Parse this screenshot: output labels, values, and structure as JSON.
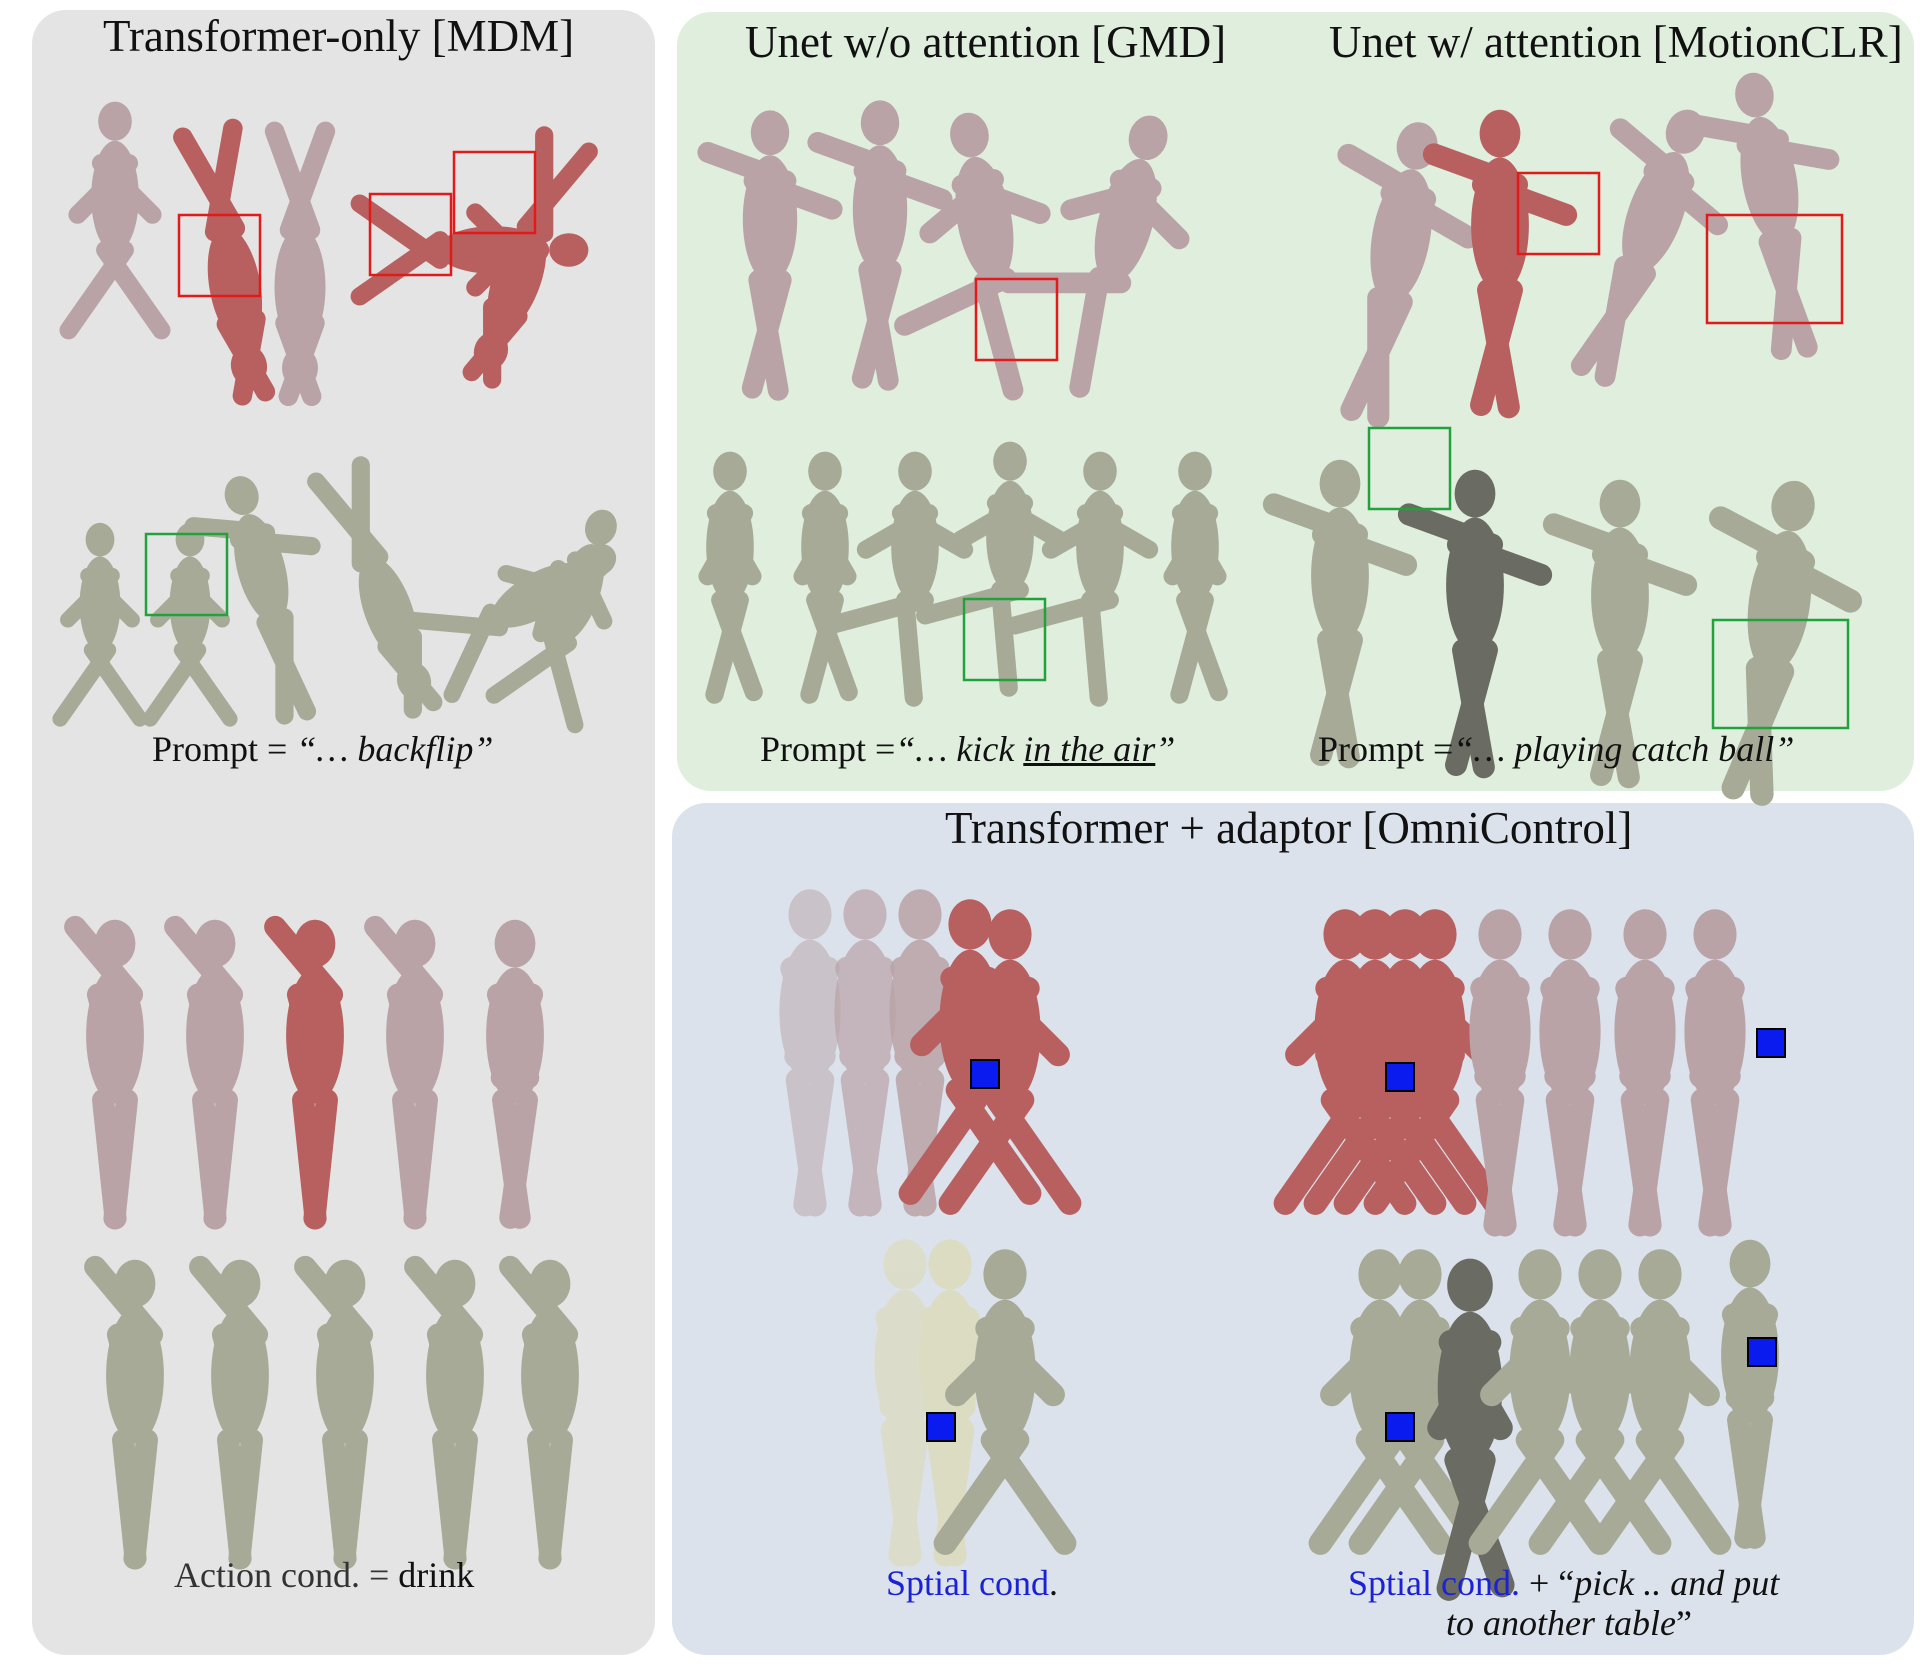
{
  "panels": {
    "mdm": {
      "title": "Transformer-only [MDM]",
      "prompt": {
        "prefix": "Prompt = ",
        "open_quote": "“… ",
        "italic": "backflip",
        "close_quote": "”"
      },
      "action": {
        "label": "Action cond. = ",
        "value": "drink"
      }
    },
    "unet": {
      "gmd_title": "Unet w/o attention [GMD]",
      "motionclr_title": "Unet w/ attention [MotionCLR]",
      "gmd_prompt": {
        "prefix": "Prompt =",
        "open_quote": "“… ",
        "italic": "kick ",
        "underlined": "in the air",
        "close_quote": "”"
      },
      "motionclr_prompt": {
        "prefix": "Prompt =",
        "open_quote": "“… ",
        "italic": "playing catch ball",
        "close_quote": "”"
      }
    },
    "omni": {
      "title": "Transformer + adaptor [OmniControl]",
      "left_caption": {
        "blue": "Sptial cond",
        "black": "."
      },
      "right_caption": {
        "blue": "Sptial cond.",
        "black": " + “",
        "italic_1": "pick .. and put",
        "italic_2": "to another table",
        "close": "”"
      }
    }
  },
  "colors": {
    "mdm_bg": "#e4e4e4",
    "unet_bg": "#dfeedd",
    "omni_bg": "#dbe2ec",
    "figure_pink": "#b9a3a7",
    "figure_red": "#b8605f",
    "figure_olive": "#a7aa96",
    "figure_dark": "#6a6b62",
    "figure_cream": "#dcdcc2",
    "highlight_red": "#e31a1a",
    "highlight_green": "#22a23c",
    "control_blue": "#0a1bf0",
    "caption_blue": "#1b22d6"
  },
  "icons": [
    "red-highlight-box",
    "green-highlight-box",
    "blue-control-marker"
  ]
}
